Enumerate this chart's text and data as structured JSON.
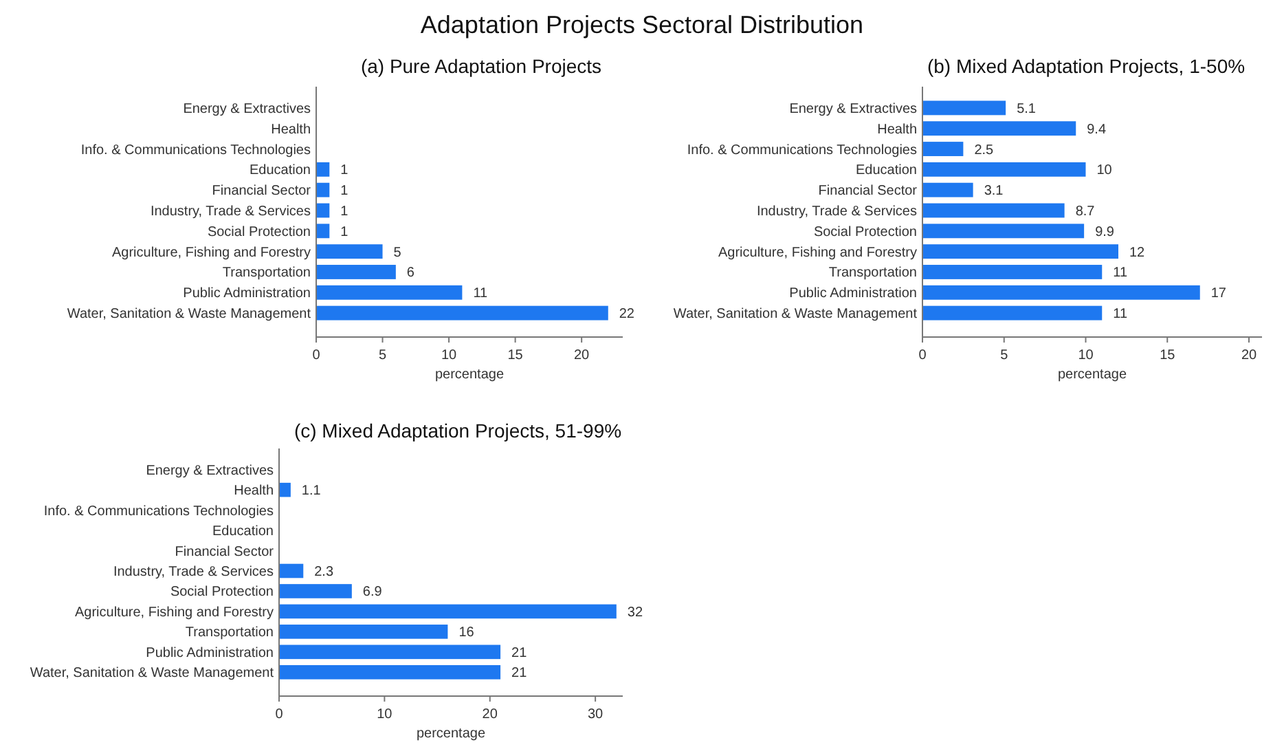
{
  "chart_data": [
    {
      "type": "other",
      "title": "Adaptation Projects Sectoral Distribution"
    },
    {
      "type": "bar",
      "orientation": "horizontal",
      "title": "(a) Pure Adaptation Projects",
      "xlabel": "percentage",
      "categories": [
        "Energy & Extractives",
        "Health",
        "Info. & Communications Technologies",
        "Education",
        "Financial Sector",
        "Industry, Trade & Services",
        "Social Protection",
        "Agriculture, Fishing and Forestry",
        "Transportation",
        "Public Administration",
        "Water, Sanitation & Waste Management"
      ],
      "values": [
        null,
        null,
        null,
        1,
        1,
        1,
        1,
        5,
        6,
        11,
        22
      ],
      "color": "#1e78f0",
      "data_labels": true,
      "xlim": [
        0,
        23.1
      ],
      "xticks": [
        0,
        5,
        10,
        15,
        20
      ]
    },
    {
      "type": "bar",
      "orientation": "horizontal",
      "title": "(b) Mixed Adaptation Projects, 1-50%",
      "xlabel": "percentage",
      "categories": [
        "Energy & Extractives",
        "Health",
        "Info. & Communications Technologies",
        "Education",
        "Financial Sector",
        "Industry, Trade & Services",
        "Social Protection",
        "Agriculture, Fishing and Forestry",
        "Transportation",
        "Public Administration",
        "Water, Sanitation & Waste Management"
      ],
      "values": [
        5.1,
        9.4,
        2.5,
        10,
        3.1,
        8.7,
        9.9,
        12,
        11,
        17,
        11
      ],
      "color": "#1e78f0",
      "data_labels": true,
      "xlim": [
        0,
        20.8
      ],
      "xticks": [
        0,
        5,
        10,
        15,
        20
      ]
    },
    {
      "type": "bar",
      "orientation": "horizontal",
      "title": "(c) Mixed Adaptation Projects, 51-99%",
      "xlabel": "percentage",
      "categories": [
        "Energy & Extractives",
        "Health",
        "Info. & Communications Technologies",
        "Education",
        "Financial Sector",
        "Industry, Trade & Services",
        "Social Protection",
        "Agriculture, Fishing and Forestry",
        "Transportation",
        "Public Administration",
        "Water, Sanitation & Waste Management"
      ],
      "values": [
        null,
        1.1,
        null,
        null,
        null,
        2.3,
        6.9,
        32,
        16,
        21,
        21
      ],
      "color": "#1e78f0",
      "data_labels": true,
      "xlim": [
        0,
        32.6
      ],
      "xticks": [
        0,
        10,
        20,
        30
      ]
    }
  ]
}
